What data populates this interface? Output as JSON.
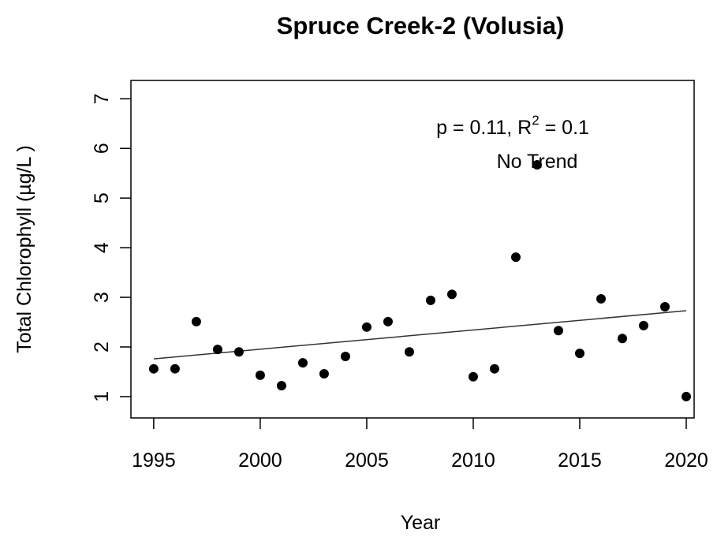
{
  "chart_data": {
    "type": "scatter",
    "title": "Spruce Creek-2 (Volusia)",
    "xlabel": "Year",
    "ylabel": "Total Chlorophyll (µg/L )",
    "x": [
      1995,
      1996,
      1997,
      1998,
      1999,
      2000,
      2001,
      2002,
      2003,
      2004,
      2005,
      2006,
      2007,
      2008,
      2009,
      2010,
      2011,
      2012,
      2013,
      2014,
      2015,
      2016,
      2017,
      2018,
      2019,
      2020
    ],
    "values": [
      1.56,
      1.56,
      2.51,
      1.95,
      1.9,
      1.43,
      1.22,
      1.68,
      1.46,
      1.81,
      2.4,
      2.51,
      1.9,
      2.94,
      3.06,
      1.4,
      1.56,
      3.81,
      5.67,
      2.33,
      1.87,
      2.97,
      2.17,
      2.43,
      2.81,
      1.0
    ],
    "color": "#000000",
    "trend": {
      "x": [
        1995,
        2020
      ],
      "values": [
        1.76,
        2.73
      ],
      "color": "#333333"
    },
    "annotation": {
      "text_before": "p = 0.11, R",
      "superscript": "2",
      "text_after": " = 0.1",
      "trend_label": "No Trend"
    },
    "xlim": [
      1993.93,
      2020.37
    ],
    "ylim": [
      0.57,
      7.37
    ],
    "xticks": [
      1995,
      2000,
      2005,
      2010,
      2015,
      2020
    ],
    "yticks": [
      1,
      2,
      3,
      4,
      5,
      6,
      7
    ],
    "grid": false
  }
}
